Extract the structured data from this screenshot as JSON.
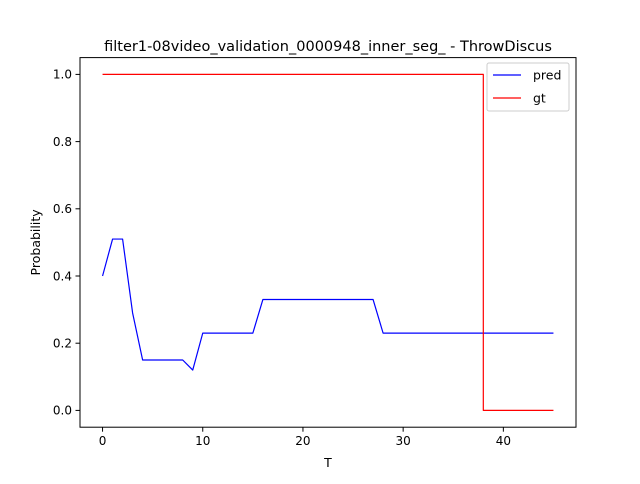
{
  "chart_data": {
    "type": "line",
    "title": "filter1-08video_validation_0000948_inner_seg_ - ThrowDiscus",
    "xlabel": "T",
    "ylabel": "Probability",
    "xlim": [
      -2.25,
      47.25
    ],
    "ylim": [
      -0.05,
      1.05
    ],
    "xticks": [
      0,
      10,
      20,
      30,
      40
    ],
    "xtick_labels": [
      "0",
      "10",
      "20",
      "30",
      "40"
    ],
    "yticks": [
      0.0,
      0.2,
      0.4,
      0.6,
      0.8,
      1.0
    ],
    "ytick_labels": [
      "0.0",
      "0.2",
      "0.4",
      "0.6",
      "0.8",
      "1.0"
    ],
    "grid": false,
    "legend_position": "top-right",
    "series": [
      {
        "name": "pred",
        "color": "#0000ff",
        "step": false,
        "x": [
          0,
          1,
          2,
          3,
          4,
          5,
          6,
          7,
          8,
          9,
          10,
          11,
          12,
          13,
          14,
          15,
          16,
          17,
          18,
          19,
          20,
          21,
          22,
          23,
          24,
          25,
          26,
          27,
          28,
          29,
          30,
          31,
          32,
          33,
          34,
          35,
          36,
          37,
          38,
          39,
          40,
          41,
          42,
          43,
          44,
          45
        ],
        "y": [
          0.4,
          0.51,
          0.51,
          0.29,
          0.15,
          0.15,
          0.15,
          0.15,
          0.15,
          0.12,
          0.23,
          0.23,
          0.23,
          0.23,
          0.23,
          0.23,
          0.33,
          0.33,
          0.33,
          0.33,
          0.33,
          0.33,
          0.33,
          0.33,
          0.33,
          0.33,
          0.33,
          0.33,
          0.23,
          0.23,
          0.23,
          0.23,
          0.23,
          0.23,
          0.23,
          0.23,
          0.23,
          0.23,
          0.23,
          0.23,
          0.23,
          0.23,
          0.23,
          0.23,
          0.23,
          0.23
        ]
      },
      {
        "name": "gt",
        "color": "#ff0000",
        "step": true,
        "x": [
          0,
          38,
          38,
          45
        ],
        "y": [
          1.0,
          1.0,
          0.0,
          0.0
        ]
      }
    ]
  }
}
